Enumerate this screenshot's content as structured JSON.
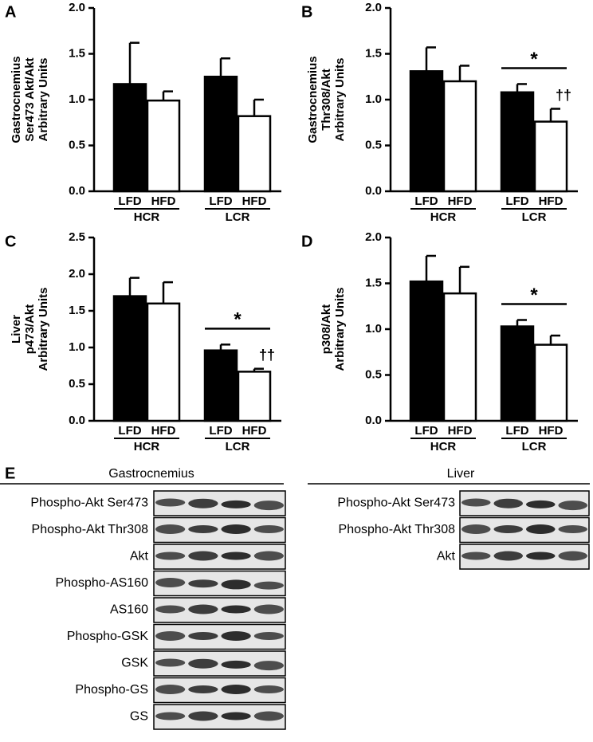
{
  "chart_data": [
    {
      "type": "bar",
      "panel": "A",
      "ylabel": [
        "Gastrocnemius",
        "Ser473 Akt/Akt",
        "Arbitrary Units"
      ],
      "categories": [
        "LFD",
        "HFD",
        "LFD",
        "HFD"
      ],
      "groups": [
        "HCR",
        "LCR"
      ],
      "values": [
        1.17,
        0.99,
        1.25,
        0.82
      ],
      "errors": [
        0.45,
        0.1,
        0.2,
        0.18
      ],
      "colors": [
        "#000000",
        "#ffffff",
        "#000000",
        "#ffffff"
      ],
      "ylim": [
        0,
        2
      ],
      "yticks": [
        {
          "value": 0,
          "label": "0.0"
        },
        0.5,
        {
          "value": 1,
          "label": "1.0"
        },
        1.5,
        {
          "value": 2,
          "label": "2.0"
        }
      ],
      "annotations": []
    },
    {
      "type": "bar",
      "panel": "B",
      "ylabel": [
        "Gastrocnemius",
        "Thr308/Akt",
        "Arbitrary Units"
      ],
      "categories": [
        "LFD",
        "HFD",
        "LFD",
        "HFD"
      ],
      "groups": [
        "HCR",
        "LCR"
      ],
      "values": [
        1.31,
        1.2,
        1.08,
        0.76
      ],
      "errors": [
        0.26,
        0.17,
        0.09,
        0.14
      ],
      "colors": [
        "#000000",
        "#ffffff",
        "#000000",
        "#ffffff"
      ],
      "ylim": [
        0,
        2
      ],
      "yticks": [
        {
          "value": 0,
          "label": "0.0"
        },
        0.5,
        {
          "value": 1,
          "label": "1.0"
        },
        1.5,
        {
          "value": 2,
          "label": "2.0"
        }
      ],
      "annotations": [
        "*",
        "††"
      ]
    },
    {
      "type": "bar",
      "panel": "C",
      "ylabel": [
        "Liver",
        "p473/Akt",
        "Arbitrary Units"
      ],
      "categories": [
        "LFD",
        "HFD",
        "LFD",
        "HFD"
      ],
      "groups": [
        "HCR",
        "LCR"
      ],
      "values": [
        1.7,
        1.6,
        0.96,
        0.67
      ],
      "errors": [
        0.25,
        0.29,
        0.08,
        0.04
      ],
      "colors": [
        "#000000",
        "#ffffff",
        "#000000",
        "#ffffff"
      ],
      "ylim": [
        0,
        2.5
      ],
      "yticks": [
        {
          "value": 0,
          "label": "0.0"
        },
        0.5,
        {
          "value": 1,
          "label": "1.0"
        },
        1.5,
        {
          "value": 2,
          "label": "2.0"
        },
        2.5
      ],
      "annotations": [
        "*",
        "††"
      ]
    },
    {
      "type": "bar",
      "panel": "D",
      "ylabel": [
        "p308/Akt",
        "Arbitrary Units"
      ],
      "categories": [
        "LFD",
        "HFD",
        "LFD",
        "HFD"
      ],
      "groups": [
        "HCR",
        "LCR"
      ],
      "values": [
        1.52,
        1.39,
        1.03,
        0.83
      ],
      "errors": [
        0.28,
        0.29,
        0.07,
        0.1
      ],
      "colors": [
        "#000000",
        "#ffffff",
        "#000000",
        "#ffffff"
      ],
      "ylim": [
        0,
        2
      ],
      "yticks": [
        {
          "value": 0,
          "label": "0.0"
        },
        0.5,
        {
          "value": 1,
          "label": "1.0"
        },
        1.5,
        {
          "value": 2,
          "label": "2.0"
        }
      ],
      "annotations": [
        "*"
      ]
    }
  ],
  "blots": {
    "panel": "E",
    "gastrocnemius": {
      "title": "Gastrocnemius",
      "rows": [
        "Phospho-Akt Ser473",
        "Phospho-Akt Thr308",
        "Akt",
        "Phospho-AS160",
        "AS160",
        "Phospho-GSK",
        "GSK",
        "Phospho-GS",
        "GS"
      ]
    },
    "liver": {
      "title": "Liver",
      "rows": [
        "Phospho-Akt Ser473",
        "Phospho-Akt Thr308",
        "Akt"
      ]
    }
  }
}
